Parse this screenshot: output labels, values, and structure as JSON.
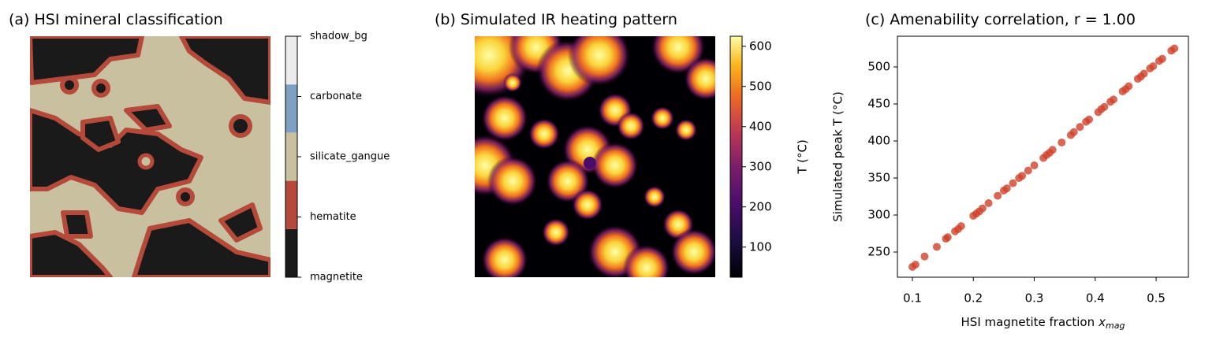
{
  "chart_data": [
    {
      "type": "category_map",
      "title": "(a) HSI mineral classification",
      "categories": [
        "magnetite",
        "hematite",
        "silicate_gangue",
        "carbonate",
        "shadow_bg"
      ],
      "colors": [
        "#1a1a1a",
        "#b5493a",
        "#c9c0a0",
        "#7da0c4",
        "#ebebeb"
      ]
    },
    {
      "type": "heatmap",
      "title": "(b) Simulated IR heating pattern",
      "colorbar_label": "T (°C)",
      "clim": [
        25,
        625
      ],
      "cticks": [
        100,
        200,
        300,
        400,
        500,
        600
      ],
      "colormap": "inferno"
    },
    {
      "type": "scatter",
      "title": "(c) Amenability correlation, r = 1.00",
      "xlabel": {
        "text": "HSI magnetite fraction",
        "symbol": "x",
        "subscript": "mag"
      },
      "ylabel": "Simulated peak T (°C)",
      "color": "#d0412a",
      "xlim": [
        0.0754,
        0.553
      ],
      "ylim": [
        216,
        541.5
      ],
      "xticks": [
        0.1,
        0.2,
        0.3,
        0.4,
        0.5
      ],
      "yticks": [
        250,
        300,
        350,
        400,
        450,
        500
      ],
      "x": [
        0.1,
        0.105,
        0.12,
        0.14,
        0.155,
        0.158,
        0.17,
        0.175,
        0.18,
        0.2,
        0.205,
        0.21,
        0.215,
        0.225,
        0.24,
        0.25,
        0.255,
        0.265,
        0.275,
        0.28,
        0.29,
        0.3,
        0.315,
        0.32,
        0.325,
        0.33,
        0.345,
        0.36,
        0.365,
        0.375,
        0.385,
        0.39,
        0.405,
        0.41,
        0.415,
        0.425,
        0.43,
        0.445,
        0.45,
        0.455,
        0.47,
        0.475,
        0.48,
        0.49,
        0.495,
        0.505,
        0.51,
        0.525,
        0.53
      ],
      "values": [
        230,
        233,
        244,
        257,
        268,
        270,
        278,
        281,
        285,
        299,
        302,
        305,
        309,
        316,
        326,
        333,
        336,
        343,
        350,
        353,
        360,
        367,
        377,
        381,
        384,
        388,
        398,
        408,
        412,
        419,
        426,
        429,
        439,
        443,
        446,
        453,
        456,
        467,
        470,
        474,
        484,
        487,
        491,
        498,
        501,
        508,
        511,
        522,
        525
      ]
    }
  ]
}
